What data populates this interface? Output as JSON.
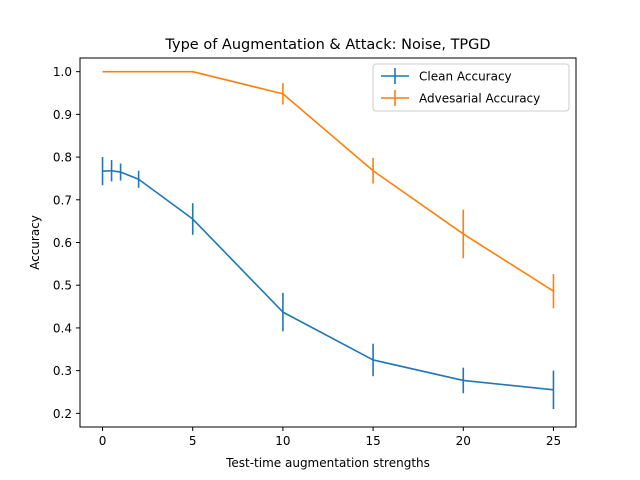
{
  "chart_data": {
    "type": "line",
    "title": "Type of Augmentation & Attack: Noise, TPGD",
    "xlabel": "Test-time augmentation strengths",
    "ylabel": "Accuracy",
    "xlim": [
      -1.25,
      26.25
    ],
    "ylim": [
      0.168,
      1.032
    ],
    "xticks": [
      0,
      5,
      10,
      15,
      20,
      25
    ],
    "xtick_labels": [
      "0",
      "5",
      "10",
      "15",
      "20",
      "25"
    ],
    "yticks": [
      0.2,
      0.3,
      0.4,
      0.5,
      0.6,
      0.7,
      0.8,
      0.9,
      1.0
    ],
    "ytick_labels": [
      "0.2",
      "0.3",
      "0.4",
      "0.5",
      "0.6",
      "0.7",
      "0.8",
      "0.9",
      "1.0"
    ],
    "grid": false,
    "legend_position": "top-right",
    "series": [
      {
        "name": "Clean Accuracy",
        "color": "#1f77b4",
        "x": [
          0,
          0.5,
          1,
          2,
          5,
          10,
          15,
          20,
          25
        ],
        "y": [
          0.767,
          0.768,
          0.765,
          0.748,
          0.655,
          0.437,
          0.325,
          0.277,
          0.255
        ],
        "yerr": [
          0.033,
          0.025,
          0.02,
          0.02,
          0.037,
          0.045,
          0.038,
          0.03,
          0.045
        ]
      },
      {
        "name": "Advesarial Accuracy",
        "color": "#ff7f0e",
        "x": [
          0,
          5,
          10,
          15,
          20,
          25
        ],
        "y": [
          1.0,
          1.0,
          0.948,
          0.768,
          0.62,
          0.486
        ],
        "yerr": [
          0.0,
          0.0,
          0.025,
          0.03,
          0.057,
          0.04
        ]
      }
    ]
  }
}
